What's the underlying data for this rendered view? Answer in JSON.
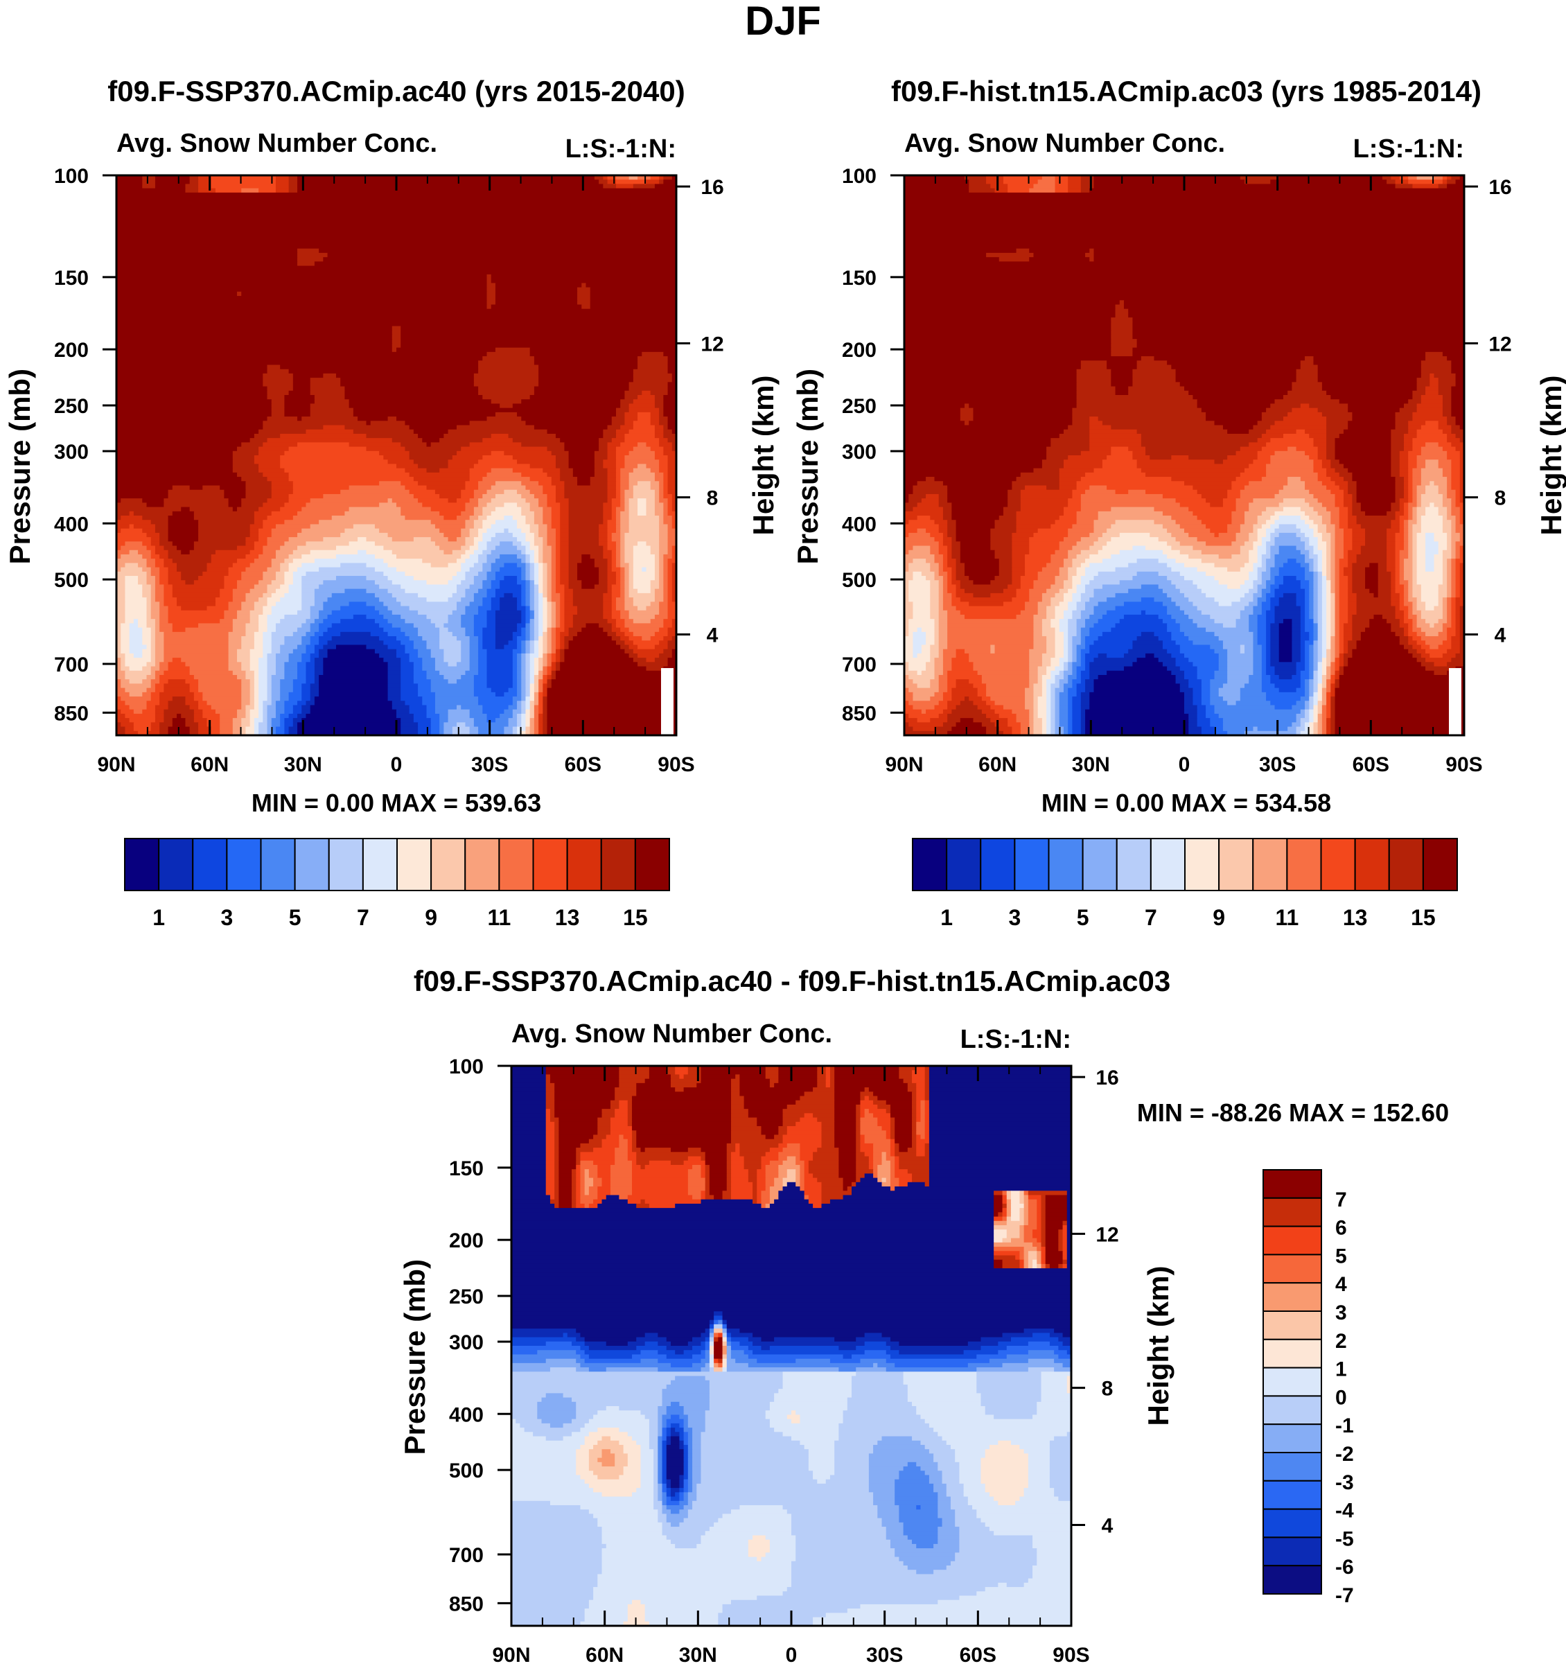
{
  "title": "DJF",
  "colors": {
    "seq": [
      "#08007f",
      "#0a2bb8",
      "#0e46e0",
      "#2468f5",
      "#4a87f3",
      "#87aef7",
      "#b7cdf9",
      "#dce8fb",
      "#fde8d8",
      "#fbc8ac",
      "#f9a17c",
      "#f76f44",
      "#f3481c",
      "#d9310c",
      "#b42208",
      "#8a0000"
    ],
    "diff": [
      "#0c0d83",
      "#0c2bb5",
      "#1048dc",
      "#2a68f3",
      "#4e87f2",
      "#86adf5",
      "#b8cef8",
      "#dae7fa",
      "#fde6d6",
      "#fbc6a8",
      "#f99a70",
      "#f6673a",
      "#f24118",
      "#c62d0a",
      "#8b0000"
    ]
  },
  "chart_data": [
    {
      "type": "heatmap",
      "title": "f09.F-SSP370.ACmip.ac40 (yrs 2015-2040)",
      "subtitle_left": "Avg. Snow Number Conc.",
      "subtitle_right": "L:S:-1:N:",
      "ylabel": "Pressure (mb)",
      "ylabel_right": "Height (km)",
      "x_ticks": [
        "90N",
        "60N",
        "30N",
        "0",
        "30S",
        "60S",
        "90S"
      ],
      "y_ticks": [
        "100",
        "150",
        "200",
        "250",
        "300",
        "400",
        "500",
        "700",
        "850"
      ],
      "y_right_ticks": [
        "16",
        "12",
        "8",
        "4"
      ],
      "stats": "MIN =    0.00   MAX = 539.63",
      "colorbar_labels": [
        "1",
        "3",
        "5",
        "7",
        "9",
        "11",
        "13",
        "15"
      ],
      "levels": [
        1,
        2,
        3,
        4,
        5,
        6,
        7,
        8,
        9,
        10,
        11,
        12,
        13,
        14,
        15
      ]
    },
    {
      "type": "heatmap",
      "title": "f09.F-hist.tn15.ACmip.ac03 (yrs 1985-2014)",
      "subtitle_left": "Avg. Snow Number Conc.",
      "subtitle_right": "L:S:-1:N:",
      "ylabel": "Pressure (mb)",
      "ylabel_right": "Height (km)",
      "x_ticks": [
        "90N",
        "60N",
        "30N",
        "0",
        "30S",
        "60S",
        "90S"
      ],
      "y_ticks": [
        "100",
        "150",
        "200",
        "250",
        "300",
        "400",
        "500",
        "700",
        "850"
      ],
      "y_right_ticks": [
        "16",
        "12",
        "8",
        "4"
      ],
      "stats": "MIN =    0.00   MAX = 534.58",
      "colorbar_labels": [
        "1",
        "3",
        "5",
        "7",
        "9",
        "11",
        "13",
        "15"
      ],
      "levels": [
        1,
        2,
        3,
        4,
        5,
        6,
        7,
        8,
        9,
        10,
        11,
        12,
        13,
        14,
        15
      ]
    },
    {
      "type": "heatmap",
      "title": "f09.F-SSP370.ACmip.ac40 - f09.F-hist.tn15.ACmip.ac03",
      "subtitle_left": "Avg. Snow Number Conc.",
      "subtitle_right": "L:S:-1:N:",
      "ylabel": "Pressure (mb)",
      "ylabel_right": "Height (km)",
      "x_ticks": [
        "90N",
        "60N",
        "30N",
        "0",
        "30S",
        "60S",
        "90S"
      ],
      "y_ticks": [
        "100",
        "150",
        "200",
        "250",
        "300",
        "400",
        "500",
        "700",
        "850"
      ],
      "y_right_ticks": [
        "16",
        "12",
        "8",
        "4"
      ],
      "stats": "MIN = -88.26   MAX = 152.60",
      "colorbar_labels": [
        "7",
        "6",
        "5",
        "4",
        "3",
        "2",
        "1",
        "0",
        "-1",
        "-2",
        "-3",
        "-4",
        "-5",
        "-6",
        "-7"
      ],
      "levels": [
        -7,
        -6,
        -5,
        -4,
        -3,
        -2,
        -1,
        0,
        1,
        2,
        3,
        4,
        5,
        6,
        7
      ]
    }
  ]
}
